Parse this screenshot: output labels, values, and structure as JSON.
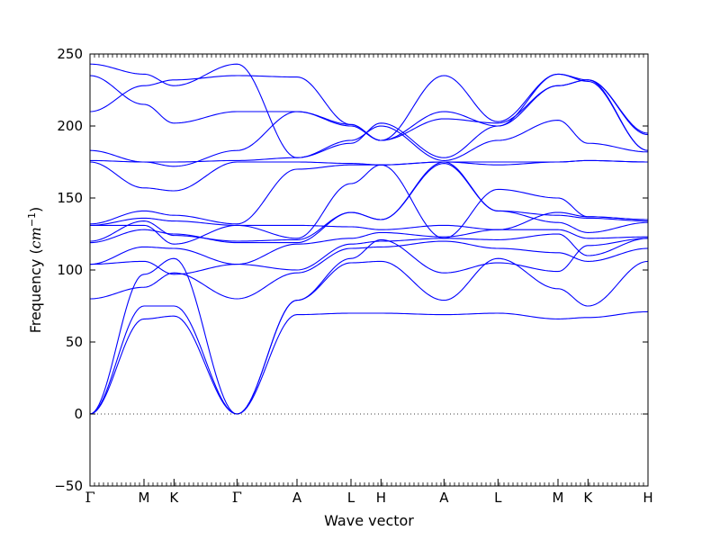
{
  "chart_data": {
    "type": "line",
    "title": "",
    "xlabel": "Wave vector",
    "ylabel_text": "Frequency (",
    "ylabel_unit": "cm",
    "ylabel_exp": "−1",
    "ylabel_close": ")",
    "ylim": [
      -50,
      250
    ],
    "yticks": [
      -50,
      0,
      50,
      100,
      150,
      200,
      250
    ],
    "xlim": [
      0,
      9.3
    ],
    "symmetry_points": [
      {
        "label": "Γ",
        "x": 0.0
      },
      {
        "label": "M",
        "x": 0.9
      },
      {
        "label": "K",
        "x": 1.4
      },
      {
        "label": "Γ",
        "x": 2.45
      },
      {
        "label": "A",
        "x": 3.45
      },
      {
        "label": "L",
        "x": 4.35
      },
      {
        "label": "H",
        "x": 4.85
      },
      {
        "label": "A",
        "x": 5.9
      },
      {
        "label": "L",
        "x": 6.8
      },
      {
        "label": "M",
        "x": 7.8
      },
      {
        "label": "K",
        "x": 8.3
      },
      {
        "label": "H",
        "x": 9.3
      }
    ],
    "zero_line": true,
    "line_color": "#0000ff",
    "series": [
      {
        "x": [
          0,
          0.9,
          1.4,
          2.45,
          3.45,
          4.35,
          4.85,
          5.9,
          6.8,
          7.8,
          8.3,
          9.3
        ],
        "y": [
          0,
          66,
          68,
          0,
          69,
          70,
          70,
          69,
          70,
          66,
          67,
          71
        ]
      },
      {
        "x": [
          0,
          0.9,
          1.4,
          2.45,
          3.45,
          4.35,
          4.85,
          5.9,
          6.8,
          7.8,
          8.3,
          9.3
        ],
        "y": [
          0,
          75,
          75,
          0,
          79,
          105,
          106,
          79,
          108,
          87,
          75,
          106
        ]
      },
      {
        "x": [
          0,
          0.9,
          1.4,
          2.45,
          3.45,
          4.35,
          4.85,
          5.9,
          6.8,
          7.8,
          8.3,
          9.3
        ],
        "y": [
          0,
          97,
          108,
          0,
          79,
          108,
          121,
          98,
          105,
          99,
          117,
          122
        ]
      },
      {
        "x": [
          0,
          0.9,
          1.4,
          2.45,
          3.45,
          4.35,
          4.85,
          5.9,
          6.8,
          7.8,
          8.3,
          9.3
        ],
        "y": [
          80,
          88,
          98,
          80,
          98,
          115,
          116,
          120,
          115,
          112,
          106,
          115
        ]
      },
      {
        "x": [
          0,
          0.9,
          1.4,
          2.45,
          3.45,
          4.35,
          4.85,
          5.9,
          6.8,
          7.8,
          8.3,
          9.3
        ],
        "y": [
          104,
          106,
          97,
          104,
          100,
          118,
          120,
          122,
          121,
          125,
          110,
          122
        ]
      },
      {
        "x": [
          0,
          0.9,
          1.4,
          2.45,
          3.45,
          4.35,
          4.85,
          5.9,
          6.8,
          7.8,
          8.3,
          9.3
        ],
        "y": [
          104,
          116,
          115,
          104,
          118,
          122,
          126,
          123,
          128,
          128,
          122,
          123
        ]
      },
      {
        "x": [
          0,
          0.9,
          1.4,
          2.45,
          3.45,
          4.35,
          4.85,
          5.9,
          6.8,
          7.8,
          8.3,
          9.3
        ],
        "y": [
          119,
          128,
          125,
          119,
          119,
          140,
          135,
          175,
          141,
          133,
          126,
          133
        ]
      },
      {
        "x": [
          0,
          0.9,
          1.4,
          2.45,
          3.45,
          4.35,
          4.85,
          5.9,
          6.8,
          7.8,
          8.3,
          9.3
        ],
        "y": [
          120,
          134,
          124,
          120,
          121,
          140,
          135,
          174,
          141,
          138,
          136,
          134
        ]
      },
      {
        "x": [
          0,
          0.9,
          1.4,
          2.45,
          3.45,
          4.35,
          4.85,
          5.9,
          6.8,
          7.8,
          8.3,
          9.3
        ],
        "y": [
          131,
          131,
          118,
          131,
          131,
          130,
          128,
          131,
          128,
          140,
          137,
          135
        ]
      },
      {
        "x": [
          0,
          0.9,
          1.4,
          2.45,
          3.45,
          4.35,
          4.85,
          5.9,
          6.8,
          7.8,
          8.3,
          9.3
        ],
        "y": [
          131,
          136,
          134,
          131,
          122,
          160,
          173,
          122,
          156,
          150,
          137,
          135
        ]
      },
      {
        "x": [
          0,
          0.9,
          1.4,
          2.45,
          3.45,
          4.35,
          4.85,
          5.9,
          6.8,
          7.8,
          8.3,
          9.3
        ],
        "y": [
          132,
          141,
          138,
          132,
          170,
          173,
          173,
          175,
          173,
          175,
          176,
          175
        ]
      },
      {
        "x": [
          0,
          0.9,
          1.4,
          2.45,
          3.45,
          4.35,
          4.85,
          5.9,
          6.8,
          7.8,
          8.3,
          9.3
        ],
        "y": [
          175,
          157,
          155,
          175,
          175,
          174,
          173,
          175,
          175,
          175,
          176,
          175
        ]
      },
      {
        "x": [
          0,
          0.9,
          1.4,
          2.45,
          3.45,
          4.35,
          4.85,
          5.9,
          6.8,
          7.8,
          8.3,
          9.3
        ],
        "y": [
          176,
          175,
          175,
          176,
          178,
          190,
          200,
          176,
          190,
          204,
          188,
          182
        ]
      },
      {
        "x": [
          0,
          0.9,
          1.4,
          2.45,
          3.45,
          4.35,
          4.85,
          5.9,
          6.8,
          7.8,
          8.3,
          9.3
        ],
        "y": [
          183,
          175,
          172,
          183,
          210,
          201,
          190,
          210,
          200,
          228,
          232,
          194
        ]
      },
      {
        "x": [
          0,
          0.9,
          1.4,
          2.45,
          3.45,
          4.35,
          4.85,
          5.9,
          6.8,
          7.8,
          8.3,
          9.3
        ],
        "y": [
          210,
          228,
          232,
          235,
          234,
          201,
          190,
          235,
          203,
          236,
          232,
          195
        ]
      },
      {
        "x": [
          0,
          0.9,
          1.4,
          2.45,
          3.45,
          4.35,
          4.85,
          5.9,
          6.8,
          7.8,
          8.3,
          9.3
        ],
        "y": [
          235,
          215,
          202,
          210,
          210,
          200,
          190,
          205,
          202,
          228,
          232,
          183
        ]
      },
      {
        "x": [
          0,
          0.9,
          1.4,
          2.45,
          3.45,
          4.35,
          4.85,
          5.9,
          6.8,
          7.8,
          8.3,
          9.3
        ],
        "y": [
          243,
          236,
          228,
          243,
          178,
          188,
          202,
          178,
          200,
          236,
          231,
          183
        ]
      }
    ]
  }
}
